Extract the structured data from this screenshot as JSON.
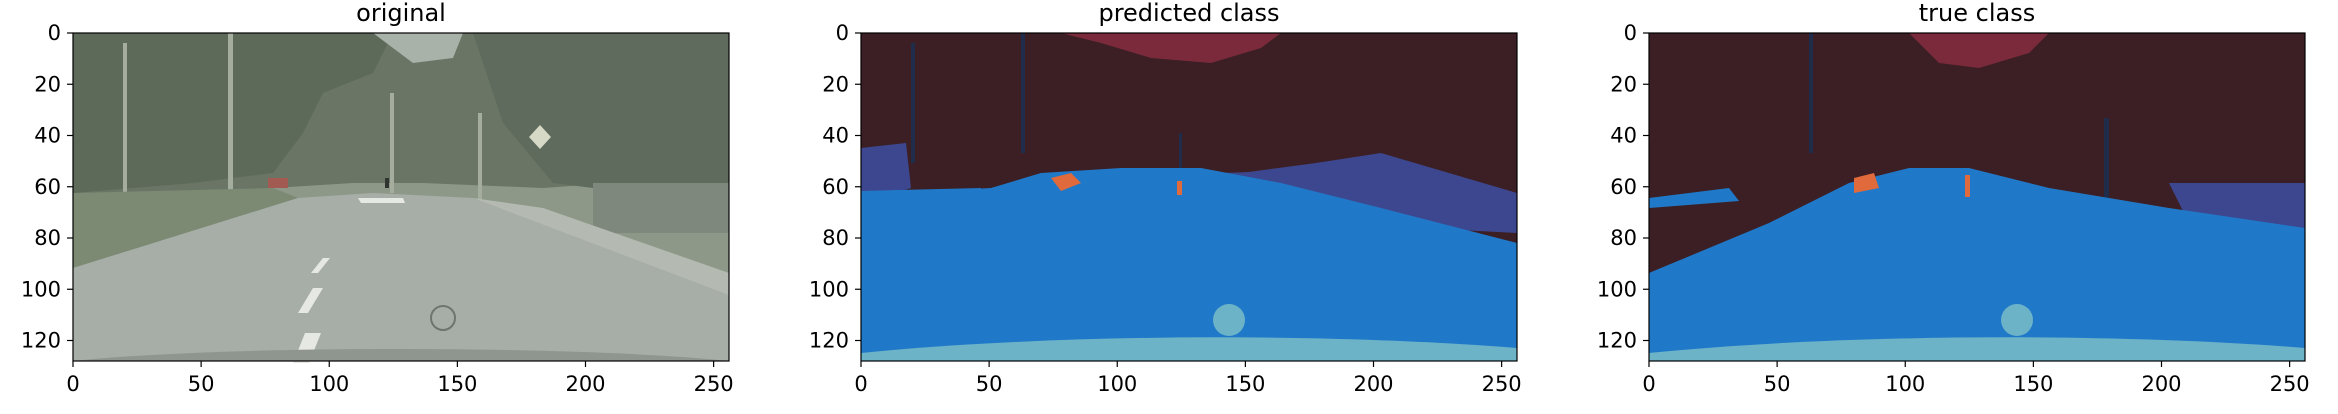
{
  "figure": {
    "panels": [
      {
        "title": "original",
        "image_kind": "street-scene-photo",
        "x_ticks": [
          "0",
          "50",
          "100",
          "150",
          "200",
          "250"
        ],
        "y_ticks": [
          "0",
          "20",
          "40",
          "60",
          "80",
          "100",
          "120"
        ]
      },
      {
        "title": "predicted class",
        "image_kind": "segmentation-map",
        "x_ticks": [
          "0",
          "50",
          "100",
          "150",
          "200",
          "250"
        ],
        "y_ticks": [
          "0",
          "20",
          "40",
          "60",
          "80",
          "100",
          "120"
        ]
      },
      {
        "title": "true class",
        "image_kind": "segmentation-map",
        "x_ticks": [
          "0",
          "50",
          "100",
          "150",
          "200",
          "250"
        ],
        "y_ticks": [
          "0",
          "20",
          "40",
          "60",
          "80",
          "100",
          "120"
        ]
      }
    ],
    "x_range": [
      0,
      256
    ],
    "y_range": [
      0,
      128
    ],
    "x_tick_values": [
      0,
      50,
      100,
      150,
      200,
      250
    ],
    "y_tick_values": [
      0,
      20,
      40,
      60,
      80,
      100,
      120
    ],
    "colors": {
      "background": "#3b1f24",
      "sky": "#7a2a3a",
      "road": "#2079c8",
      "vehicle": "#6cb3c8",
      "sidewalk": "#3d478f",
      "person": "#e06a3c",
      "pole": "#1f2d4a"
    }
  }
}
